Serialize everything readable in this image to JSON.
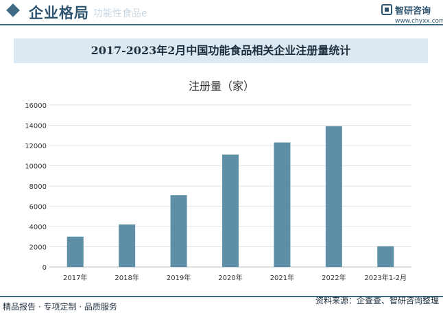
{
  "header": {
    "title": "企业格局",
    "ghost_text": "功能性食品e",
    "logo_name": "智研咨询",
    "logo_url": "www.chyxx.com"
  },
  "chart_title": "2017-2023年2月中国功能食品相关企业注册量统计",
  "footer": {
    "left": "精品报告 · 专项定制 · 品质服务",
    "right": "资料来源：企查查、智研咨询整理"
  },
  "colors": {
    "bar": "#5f8fa7",
    "accent": "#3f6b86",
    "band": "#dde9f2"
  },
  "chart_data": {
    "type": "bar",
    "title": "注册量（家）",
    "categories": [
      "2017年",
      "2018年",
      "2019年",
      "2020年",
      "2021年",
      "2022年",
      "2023年1-2月"
    ],
    "series": [
      {
        "name": "注册量（家）",
        "values": [
          3000,
          4200,
          7100,
          11100,
          12300,
          13900,
          2050
        ]
      }
    ],
    "ylim": [
      0,
      16000
    ],
    "yticks": [
      0,
      2000,
      4000,
      6000,
      8000,
      10000,
      12000,
      14000,
      16000
    ],
    "grid": true,
    "legend": "none"
  }
}
